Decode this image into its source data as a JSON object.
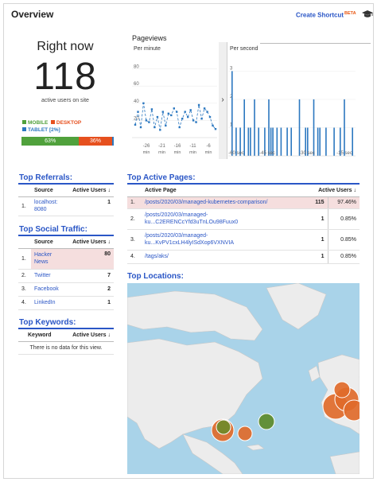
{
  "header": {
    "title": "Overview",
    "shortcut_label": "Create Shortcut",
    "shortcut_badge": "BETA"
  },
  "right_now": {
    "heading": "Right now",
    "active_users": "118",
    "subtitle": "active users on site",
    "legend": {
      "mobile": "MOBILE",
      "desktop": "DESKTOP",
      "tablet": "TABLET [2%]"
    },
    "device_split": {
      "mobile_label": "63%",
      "desktop_label": "36%",
      "mobile": 63,
      "desktop": 36,
      "tablet": 2
    },
    "colors": {
      "mobile": "#50a13c",
      "desktop": "#e6501e",
      "tablet": "#2c78c0"
    }
  },
  "pageviews": {
    "title": "Pageviews",
    "per_minute_label": "Per minute",
    "per_second_label": "Per second",
    "minute_yticks": [
      "80",
      "60",
      "40",
      "20"
    ],
    "minute_xticks": [
      "-26",
      "-21",
      "-16",
      "-11",
      "-6"
    ],
    "minute_unit": "min",
    "minute_values": [
      15,
      30,
      12,
      40,
      20,
      18,
      33,
      12,
      24,
      9,
      30,
      14,
      28,
      26,
      34,
      30,
      12,
      22,
      30,
      24,
      32,
      20,
      18,
      38,
      22,
      34,
      30,
      24,
      14,
      10
    ],
    "second_yticks": [
      "3",
      "2",
      "1"
    ],
    "second_xticks": [
      "-60 sec",
      "-45 sec",
      "-30 sec",
      "-15 sec"
    ],
    "second_values": [
      3,
      0,
      1,
      0,
      1,
      0,
      2,
      0,
      1,
      1,
      0,
      2,
      0,
      1,
      0,
      0,
      1,
      0,
      2,
      1,
      1,
      0,
      1,
      0,
      1,
      0,
      0,
      1,
      0,
      1,
      0,
      0,
      0,
      2,
      0,
      0,
      1,
      1,
      0,
      0,
      2,
      0,
      1,
      1,
      0,
      0,
      1,
      0,
      0,
      0,
      1,
      0,
      0,
      1,
      0,
      2,
      0,
      0,
      0,
      1
    ]
  },
  "top_referrals": {
    "title": "Top Referrals:",
    "columns": [
      "Source",
      "Active Users"
    ],
    "rows": [
      {
        "index": "1.",
        "source": "localhost:\n8080",
        "users": "1"
      }
    ]
  },
  "top_social": {
    "title": "Top Social Traffic:",
    "columns": [
      "Source",
      "Active Users"
    ],
    "rows": [
      {
        "index": "1.",
        "source": "Hacker\nNews",
        "users": "80"
      },
      {
        "index": "2.",
        "source": "Twitter",
        "users": "7"
      },
      {
        "index": "3.",
        "source": "Facebook",
        "users": "2"
      },
      {
        "index": "4.",
        "source": "LinkedIn",
        "users": "1"
      }
    ]
  },
  "top_keywords": {
    "title": "Top Keywords:",
    "columns": [
      "Keyword",
      "Active Users"
    ],
    "empty_message": "There is no data for this view."
  },
  "top_pages": {
    "title": "Top Active Pages:",
    "columns": [
      "Active Page",
      "Active Users"
    ],
    "rows": [
      {
        "index": "1.",
        "page": "/posts/2020/03/managed-kubernetes-comparison/",
        "users": "115",
        "pct": "97.46%"
      },
      {
        "index": "2.",
        "page": "/posts/2020/03/managed-\nku...C2ERENCcYfd3uTnLOu98Fuux0",
        "users": "1",
        "pct": "0.85%"
      },
      {
        "index": "3.",
        "page": "/posts/2020/03/managed-\nku...KvPV1cxLH4lyISdXop6VXNVIA",
        "users": "1",
        "pct": "0.85%"
      },
      {
        "index": "4.",
        "page": "/tags/aks/",
        "users": "1",
        "pct": "0.85%"
      }
    ]
  },
  "top_locations": {
    "title": "Top Locations:",
    "colors": {
      "ocean": "#a9d3e9",
      "land": "#ededed",
      "orange": "#e06a2a",
      "green": "#5c8a2a"
    }
  }
}
